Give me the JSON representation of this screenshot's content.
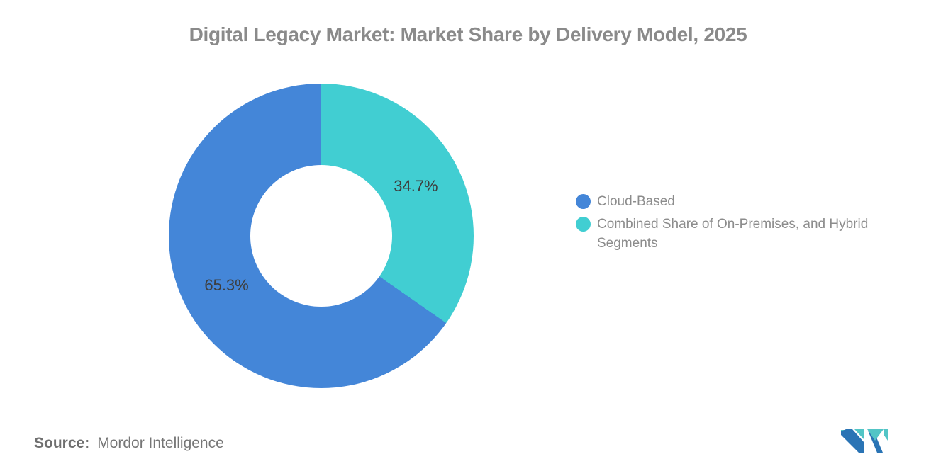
{
  "title": "Digital Legacy Market: Market Share by Delivery Model, 2025",
  "legend": {
    "items": [
      {
        "label": "Cloud-Based",
        "color": "#4486d8"
      },
      {
        "label": "Combined Share of On-Premises, and Hybrid Segments",
        "color": "#41ced2"
      }
    ]
  },
  "chart_data": {
    "type": "pie",
    "donut": true,
    "title": "Digital Legacy Market: Market Share by Delivery Model, 2025",
    "start_angle_deg": 0,
    "direction": "clockwise",
    "inner_radius_pct": 46.5,
    "legend_position": "right",
    "label_color": "#3e3e3e",
    "slices": [
      {
        "label": "Cloud-Based",
        "value": 65.3,
        "display": "65.3%",
        "color": "#4486d8"
      },
      {
        "label": "Combined Share of On-Premises, and Hybrid Segments",
        "value": 34.7,
        "display": "34.7%",
        "color": "#41ced2"
      }
    ]
  },
  "source": {
    "label": "Source:",
    "value": "Mordor Intelligence"
  },
  "logo": {
    "name": "mordor-intelligence-logo",
    "teal": "#52c5c6",
    "blue": "#2a74b5"
  }
}
